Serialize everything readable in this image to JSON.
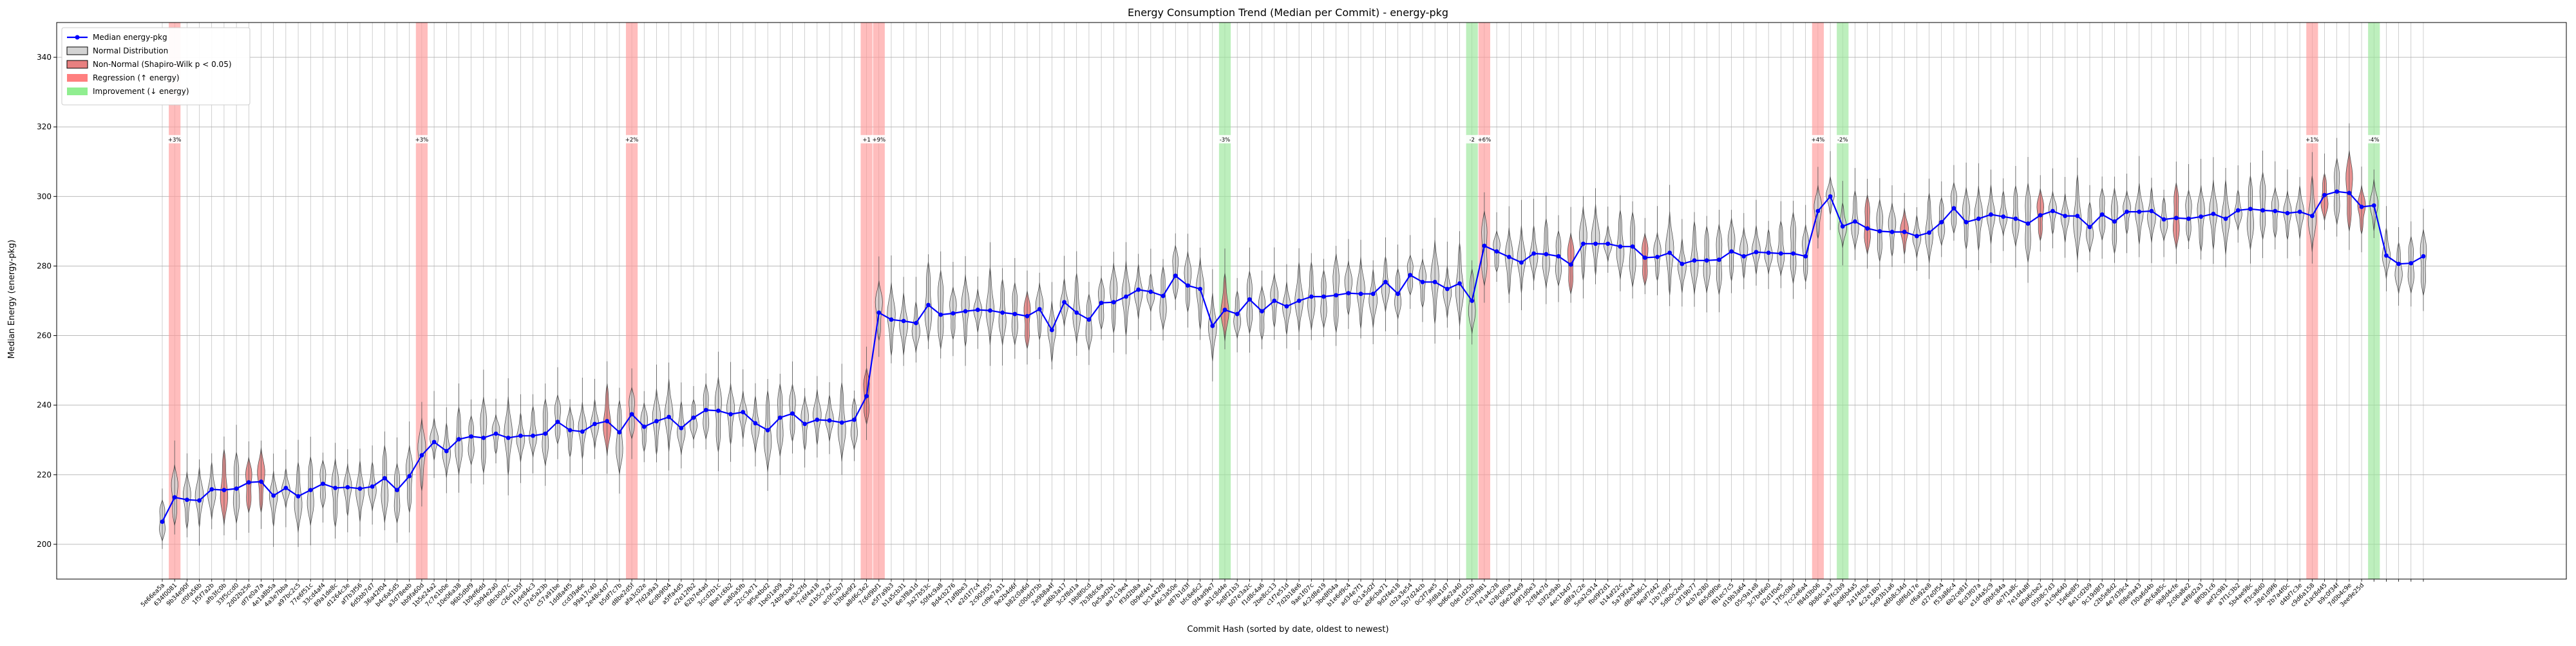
{
  "chart_data": {
    "type": "violin-line",
    "title": "Energy Consumption Trend (Median per Commit) - energy-pkg",
    "xlabel": "Commit Hash (sorted by date, oldest to newest)",
    "ylabel": "Median Energy (energy-pkg)",
    "ylim": [
      190,
      350
    ],
    "yticks": [
      200,
      220,
      240,
      260,
      280,
      300,
      320,
      340
    ],
    "grid": true,
    "legend_position": "upper-left",
    "legend": [
      {
        "label": "Median energy-pkg",
        "kind": "line"
      },
      {
        "label": "Normal Distribution",
        "kind": "normal"
      },
      {
        "label": "Non-Normal (Shapiro-Wilk p < 0.05)",
        "kind": "nonnormal"
      },
      {
        "label": "Regression (↑ energy)",
        "kind": "regression"
      },
      {
        "label": "Improvement (↓ energy)",
        "kind": "improvement"
      }
    ],
    "colors": {
      "median": "#0000ff",
      "normal_fill": "#d3d3d3",
      "nonnormal_fill": "#e88080",
      "regression": "#ff9999",
      "improvement": "#99e699",
      "grid": "#b0b0b0"
    },
    "series": [
      {
        "name": "Median energy-pkg",
        "values": [
          206.5,
          213.5,
          212.8,
          212.6,
          215.8,
          215.6,
          216.0,
          217.8,
          218.0,
          214.0,
          216.2,
          213.8,
          215.6,
          217.4,
          216.2,
          216.4,
          216.0,
          216.6,
          219.0,
          215.6,
          219.6,
          225.6,
          229.4,
          226.8,
          230.2,
          231.0,
          230.6,
          231.8,
          230.6,
          231.2,
          231.2,
          231.8,
          235.2,
          232.8,
          232.4,
          234.6,
          235.4,
          232.2,
          237.4,
          233.8,
          235.4,
          236.6,
          233.4,
          236.4,
          238.6,
          238.4,
          237.4,
          238.0,
          234.8,
          232.8,
          236.4,
          237.6,
          234.6,
          235.8,
          235.6,
          235.0,
          235.8,
          242.6,
          266.6,
          264.6,
          264.2,
          263.6,
          268.8,
          266.0,
          266.4,
          267.0,
          267.4,
          267.2,
          266.6,
          266.2,
          265.6,
          267.6,
          261.6,
          269.6,
          266.6,
          264.6,
          269.4,
          269.6,
          271.2,
          273.2,
          272.6,
          271.4,
          277.2,
          274.4,
          273.4,
          262.8,
          267.4,
          266.2,
          270.4,
          267.0,
          270.0,
          268.4,
          270.0,
          271.2,
          271.2,
          271.6,
          272.2,
          272.0,
          272.0,
          275.4,
          272.0,
          277.4,
          275.4,
          275.4,
          273.4,
          275.0,
          270.0,
          285.8,
          284.2,
          282.6,
          281.0,
          283.6,
          283.4,
          282.8,
          280.4,
          286.4,
          286.4,
          286.4,
          285.6,
          285.6,
          282.4,
          282.6,
          283.8,
          280.6,
          281.6,
          281.6,
          281.8,
          284.2,
          282.8,
          284.0,
          283.8,
          283.6,
          283.6,
          282.8,
          295.8,
          300.0,
          291.4,
          292.8,
          290.8,
          290.0,
          289.8,
          289.8,
          288.6,
          289.6,
          292.6,
          296.6,
          292.6,
          293.6,
          294.8,
          294.2,
          293.6,
          292.2,
          294.6,
          295.8,
          294.4,
          294.4,
          291.2,
          294.8,
          292.8,
          295.6,
          295.6,
          295.8,
          293.4,
          293.8,
          293.6,
          294.2,
          295.0,
          293.6,
          296.0,
          296.4,
          296.0,
          295.8,
          295.2,
          295.6,
          294.4,
          300.4,
          301.4,
          301.0,
          297.0,
          297.4,
          283.0,
          280.6,
          280.8,
          282.8
        ],
        "nonnormal_indices": [
          5,
          7,
          8,
          36,
          57,
          70,
          86,
          114,
          120,
          138,
          141,
          152,
          163,
          175,
          177,
          178
        ]
      }
    ],
    "regions": [
      {
        "type": "regression",
        "index": 1,
        "label": "+3%"
      },
      {
        "type": "regression",
        "index": 21,
        "label": "+3%"
      },
      {
        "type": "regression",
        "index": 38,
        "label": "+2%"
      },
      {
        "type": "regression",
        "index": 57,
        "label": "+1"
      },
      {
        "type": "regression",
        "index": 58,
        "label": "+9%"
      },
      {
        "type": "improvement",
        "index": 86,
        "label": "-3%"
      },
      {
        "type": "improvement",
        "index": 106,
        "label": "-2"
      },
      {
        "type": "regression",
        "index": 107,
        "label": "+6%"
      },
      {
        "type": "regression",
        "index": 134,
        "label": "+4%"
      },
      {
        "type": "improvement",
        "index": 136,
        "label": "-2%"
      },
      {
        "type": "regression",
        "index": 174,
        "label": "+1%"
      },
      {
        "type": "improvement",
        "index": 179,
        "label": "-4%"
      }
    ],
    "categories": [
      "5e66ea5a",
      "634f0081",
      "9b34e90f",
      "cf0fa56b",
      "1f5f7a2b",
      "afb3fc0b",
      "33f5ccd0",
      "2d02b25e",
      "df7e0a7a",
      "4e1a8b5a",
      "4a3e7bba",
      "a97bc2c5",
      "77e6f51c",
      "33cd4af4",
      "89a1de8c",
      "d1264c3e",
      "af7b3f56",
      "6d5bb7d7",
      "36a42f04",
      "b4c6a5d5",
      "a3d78eeb",
      "bb9fa60d",
      "1b5e24a2",
      "7c7e1b0e",
      "10e06a38",
      "96b5dbf9",
      "1b9ef6dd",
      "5b94e2a0",
      "08cb0d7c",
      "c26d1b5f",
      "f1de84c3",
      "07e5a23b",
      "c57a91be",
      "1dd8a4f5",
      "ccd39a6e",
      "99a17c40",
      "2e48c4d7",
      "b5df7c7b",
      "d8be2d5f",
      "afa3c02e",
      "7fd2a9a3",
      "6cdb9f04",
      "a5ffa4d5",
      "e2e12fb2",
      "62b7e4ad",
      "3ccd2b1c",
      "8be1c6b2",
      "ea80a5fb",
      "22cc3e71",
      "9f5e4bd2",
      "1be01a09",
      "24b9cba5",
      "8ae3c2fd",
      "7c6f4a18",
      "e1b5c7a2",
      "ac0fc2b7",
      "b3b6e9f2",
      "a8d6c3e2",
      "7c6d9bf1",
      "e5f7a9b3",
      "b1a5cb31",
      "6e3f8a1d",
      "3a27b53c",
      "50f4c9a8",
      "8d4cb276",
      "71af8be3",
      "e2d1f7c4",
      "2c905f55",
      "cd9e7a31",
      "9e2b4d6f",
      "b82c0a6d",
      "c00dd75b",
      "2e9b8a4f",
      "ed6b3a17",
      "3c2f8d1a",
      "19b8f0cd",
      "7b38dc6a",
      "0e5ad2b1",
      "aa7c19e4",
      "ff3d2b8a",
      "0b9ef4e1",
      "bc1e42f8",
      "46c3a50e",
      "e87b1d3f",
      "bfc8e6c2",
      "0f4ad9e7",
      "ab1c8d4e",
      "5e8f21b3",
      "b07e3a2c",
      "f1d8c4a6",
      "2be8cc13",
      "c1f7e51d",
      "7d2b18e6",
      "9ae1f07c",
      "4c2d8e19",
      "3be8f04a",
      "b1e6d9c4",
      "ad34e7f1",
      "0c1a5d2f",
      "eb6cba71",
      "9d2f4e18",
      "cb2a3e54",
      "5b7d24cb",
      "0c2f7ae5",
      "3fd8a1d7",
      "bd6e2a40",
      "0de1d25b",
      "c5b3f981",
      "7e1a4c28",
      "b28c6f0a",
      "06e2b4e9",
      "69f1d0e3",
      "2cf84e7d",
      "b3f2e9ab",
      "4ec1b4d7",
      "d8fa7c2e",
      "5ea2c914",
      "fbd9f2d1",
      "b14af22c",
      "5a79f2e4",
      "d8e2b6c1",
      "9eaf7d42",
      "12b7c9f2",
      "5db0c2ed",
      "c3f19b77",
      "4cb7e280",
      "6b5d9f0e",
      "f81ec7c5",
      "d19b3a64",
      "05c9a1e8",
      "3c7b46e0",
      "82d1f0e5",
      "17f5c08d",
      "7cc2e6a4",
      "f84d3b06",
      "9b8dc1a3",
      "ae7fc2b9",
      "8ed6b4a5",
      "2a1f4d3e",
      "4c2e18b7",
      "5e93b1a6",
      "e6b8c34d",
      "08f6d17e",
      "cf6a92e8",
      "d27e0f54",
      "f53a86c4",
      "6b2ce81f",
      "8cd3f07a",
      "e1d4a5c9",
      "09bfc84a",
      "de7f1a8c",
      "7e1d4a8f",
      "80a6cbe2",
      "05b8c7d3",
      "a1c9e640",
      "15e6e8f5",
      "8e1cd2b9",
      "9c19d8f3",
      "c2b5e8d2",
      "4e7d39c4",
      "f08e9a43",
      "f30a6d4b",
      "e9c6a85c",
      "9b8d4cfe",
      "2c06a8e2",
      "e4f8d2a3",
      "8ff0b1c6",
      "aef2c981",
      "a7f1c3b2",
      "5b4ae98c",
      "ff3ca8d0",
      "28e1d9f6",
      "2b7a4f0c",
      "d4bf7c3e",
      "c9d6a158",
      "e1ac8d45",
      "b9c0f34f",
      "7d0b4c9e",
      "3ee9e25d"
    ]
  }
}
